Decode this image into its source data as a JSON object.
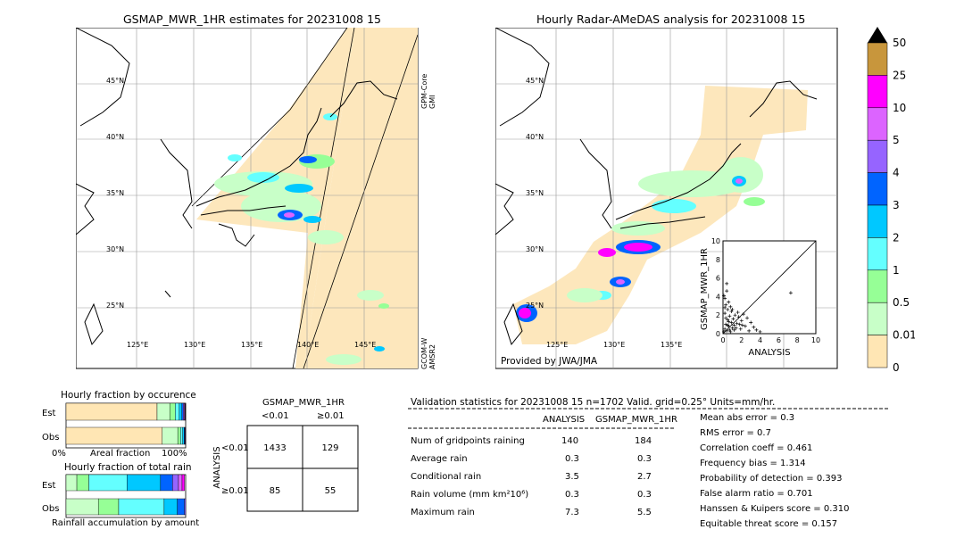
{
  "left_map": {
    "title": "GSMAP_MWR_1HR estimates for 20231008 15",
    "lat_labels": [
      "45°N",
      "40°N",
      "35°N",
      "30°N",
      "25°N"
    ],
    "lon_labels": [
      "125°E",
      "130°E",
      "135°E",
      "140°E",
      "145°E"
    ],
    "sat_label_top": "GPM-Core\nGMI",
    "sat_label_top_1": "GPM-Core",
    "sat_label_top_2": "GMI",
    "sat_label_bottom_1": "GCOM-W",
    "sat_label_bottom_2": "AMSR2"
  },
  "right_map": {
    "title": "Hourly Radar-AMeDAS analysis for 20231008 15",
    "lat_labels": [
      "45°N",
      "40°N",
      "35°N",
      "30°N",
      "25°N"
    ],
    "lon_labels": [
      "125°E",
      "130°E",
      "135°E"
    ],
    "credit": "Provided by JWA/JMA"
  },
  "colorbar": {
    "labels": [
      "50",
      "25",
      "10",
      "5",
      "4",
      "3",
      "2",
      "1",
      "0.5",
      "0.01",
      "0"
    ],
    "colors": [
      "#c8963c",
      "#ff00ff",
      "#dc64ff",
      "#9664ff",
      "#0064ff",
      "#00c8ff",
      "#64ffff",
      "#96ff96",
      "#c8ffc8",
      "#ffe6b4"
    ]
  },
  "chart_data": [
    {
      "type": "scatter",
      "title": "",
      "xlabel": "ANALYSIS",
      "ylabel": "GSMAP_MWR_1HR",
      "xlim": [
        0,
        10
      ],
      "ylim": [
        0,
        10
      ],
      "xticks": [
        "0",
        "2",
        "4",
        "6",
        "8",
        "10"
      ],
      "yticks": [
        "0",
        "2",
        "4",
        "6",
        "8",
        "10"
      ],
      "points": [
        [
          0.1,
          0.2
        ],
        [
          0.2,
          0.5
        ],
        [
          0.3,
          1.0
        ],
        [
          0.4,
          0.3
        ],
        [
          0.5,
          1.5
        ],
        [
          0.6,
          0.8
        ],
        [
          0.2,
          2.2
        ],
        [
          0.3,
          3.1
        ],
        [
          0.5,
          2.6
        ],
        [
          0.7,
          1.9
        ],
        [
          0.9,
          2.4
        ],
        [
          1.1,
          1.6
        ],
        [
          1.3,
          2.0
        ],
        [
          1.5,
          1.1
        ],
        [
          1.7,
          1.8
        ],
        [
          2.0,
          1.4
        ],
        [
          2.2,
          2.1
        ],
        [
          2.6,
          1.7
        ],
        [
          3.0,
          1.2
        ],
        [
          3.3,
          0.7
        ],
        [
          3.6,
          0.4
        ],
        [
          0.1,
          4.1
        ],
        [
          0.4,
          4.6
        ],
        [
          0.2,
          3.8
        ],
        [
          0.6,
          3.4
        ],
        [
          0.8,
          2.9
        ],
        [
          1.0,
          0.6
        ],
        [
          1.2,
          0.9
        ],
        [
          1.9,
          0.5
        ],
        [
          2.4,
          0.8
        ],
        [
          2.8,
          0.3
        ],
        [
          0.3,
          1.7
        ],
        [
          0.5,
          0.9
        ],
        [
          0.7,
          0.4
        ],
        [
          0.9,
          1.2
        ],
        [
          1.4,
          0.6
        ],
        [
          4.0,
          0.2
        ],
        [
          1.6,
          2.3
        ],
        [
          1.8,
          1.0
        ],
        [
          0.2,
          2.8
        ],
        [
          0.4,
          5.4
        ],
        [
          7.3,
          4.4
        ],
        [
          0.6,
          1.3
        ],
        [
          1.0,
          2.6
        ],
        [
          2.1,
          0.9
        ],
        [
          0.8,
          0.2
        ],
        [
          1.2,
          0.4
        ]
      ]
    },
    {
      "type": "bar",
      "title": "Hourly fraction by occurence",
      "orientation": "horizontal-stacked",
      "categories": [
        "Est",
        "Obs"
      ],
      "xlabels": [
        "0%",
        "Areal fraction",
        "100%"
      ],
      "series": [
        {
          "values": [
            0.761,
            0.804
          ]
        },
        {
          "values": [
            0.106,
            0.13
          ]
        },
        {
          "values": [
            0.046,
            0.024
          ]
        },
        {
          "values": [
            0.033,
            0.017
          ]
        },
        {
          "values": [
            0.022,
            0.012
          ]
        },
        {
          "values": [
            0.012,
            0.006
          ]
        },
        {
          "values": [
            0.008,
            0.004
          ]
        },
        {
          "values": [
            0.006,
            0.002
          ]
        },
        {
          "values": [
            0.004,
            0.001
          ]
        },
        {
          "values": [
            0.002,
            0.0
          ]
        }
      ]
    },
    {
      "type": "bar",
      "title": "Hourly fraction of total rain",
      "orientation": "horizontal-stacked",
      "categories": [
        "Est",
        "Obs"
      ],
      "xlabel": "Rainfall accumulation by amount",
      "series": [
        {
          "values": [
            0.0,
            0.0
          ]
        },
        {
          "values": [
            0.09,
            0.27
          ]
        },
        {
          "values": [
            0.1,
            0.17
          ]
        },
        {
          "values": [
            0.32,
            0.38
          ]
        },
        {
          "values": [
            0.28,
            0.11
          ]
        },
        {
          "values": [
            0.1,
            0.06
          ]
        },
        {
          "values": [
            0.05,
            0.01
          ]
        },
        {
          "values": [
            0.03,
            0.0
          ]
        },
        {
          "values": [
            0.02,
            0.0
          ]
        },
        {
          "values": [
            0.0,
            0.0
          ]
        }
      ]
    },
    {
      "type": "table",
      "title": "GSMAP_MWR_1HR",
      "col_labels": [
        "<0.01",
        "≥0.01"
      ],
      "row_axis_label": "ANALYSIS",
      "row_labels": [
        "<0.01",
        "≥0.01"
      ],
      "cells": [
        [
          "1433",
          "129"
        ],
        [
          "85",
          "55"
        ]
      ]
    }
  ],
  "validation": {
    "header": "Validation statistics for 20231008 15  n=1702 Valid. grid=0.25° Units=mm/hr.",
    "col_analysis": "ANALYSIS",
    "col_gsmap": "GSMAP_MWR_1HR",
    "rows": [
      {
        "label": "Num of gridpoints raining",
        "analysis": "140",
        "gsmap": "184"
      },
      {
        "label": "Average rain",
        "analysis": "0.3",
        "gsmap": "0.3"
      },
      {
        "label": "Conditional rain",
        "analysis": "3.5",
        "gsmap": "2.7"
      },
      {
        "label": "Rain volume (mm km²10⁶)",
        "analysis": "0.3",
        "gsmap": "0.3"
      },
      {
        "label": "Maximum rain",
        "analysis": "7.3",
        "gsmap": "5.5"
      }
    ],
    "scores": [
      "Mean abs error =    0.3",
      "RMS error =    0.7",
      "Correlation coeff =  0.461",
      "Frequency bias =  1.314",
      "Probability of detection =  0.393",
      "False alarm ratio =  0.701",
      "Hanssen & Kuipers score =  0.310",
      "Equitable threat score =  0.157"
    ]
  }
}
